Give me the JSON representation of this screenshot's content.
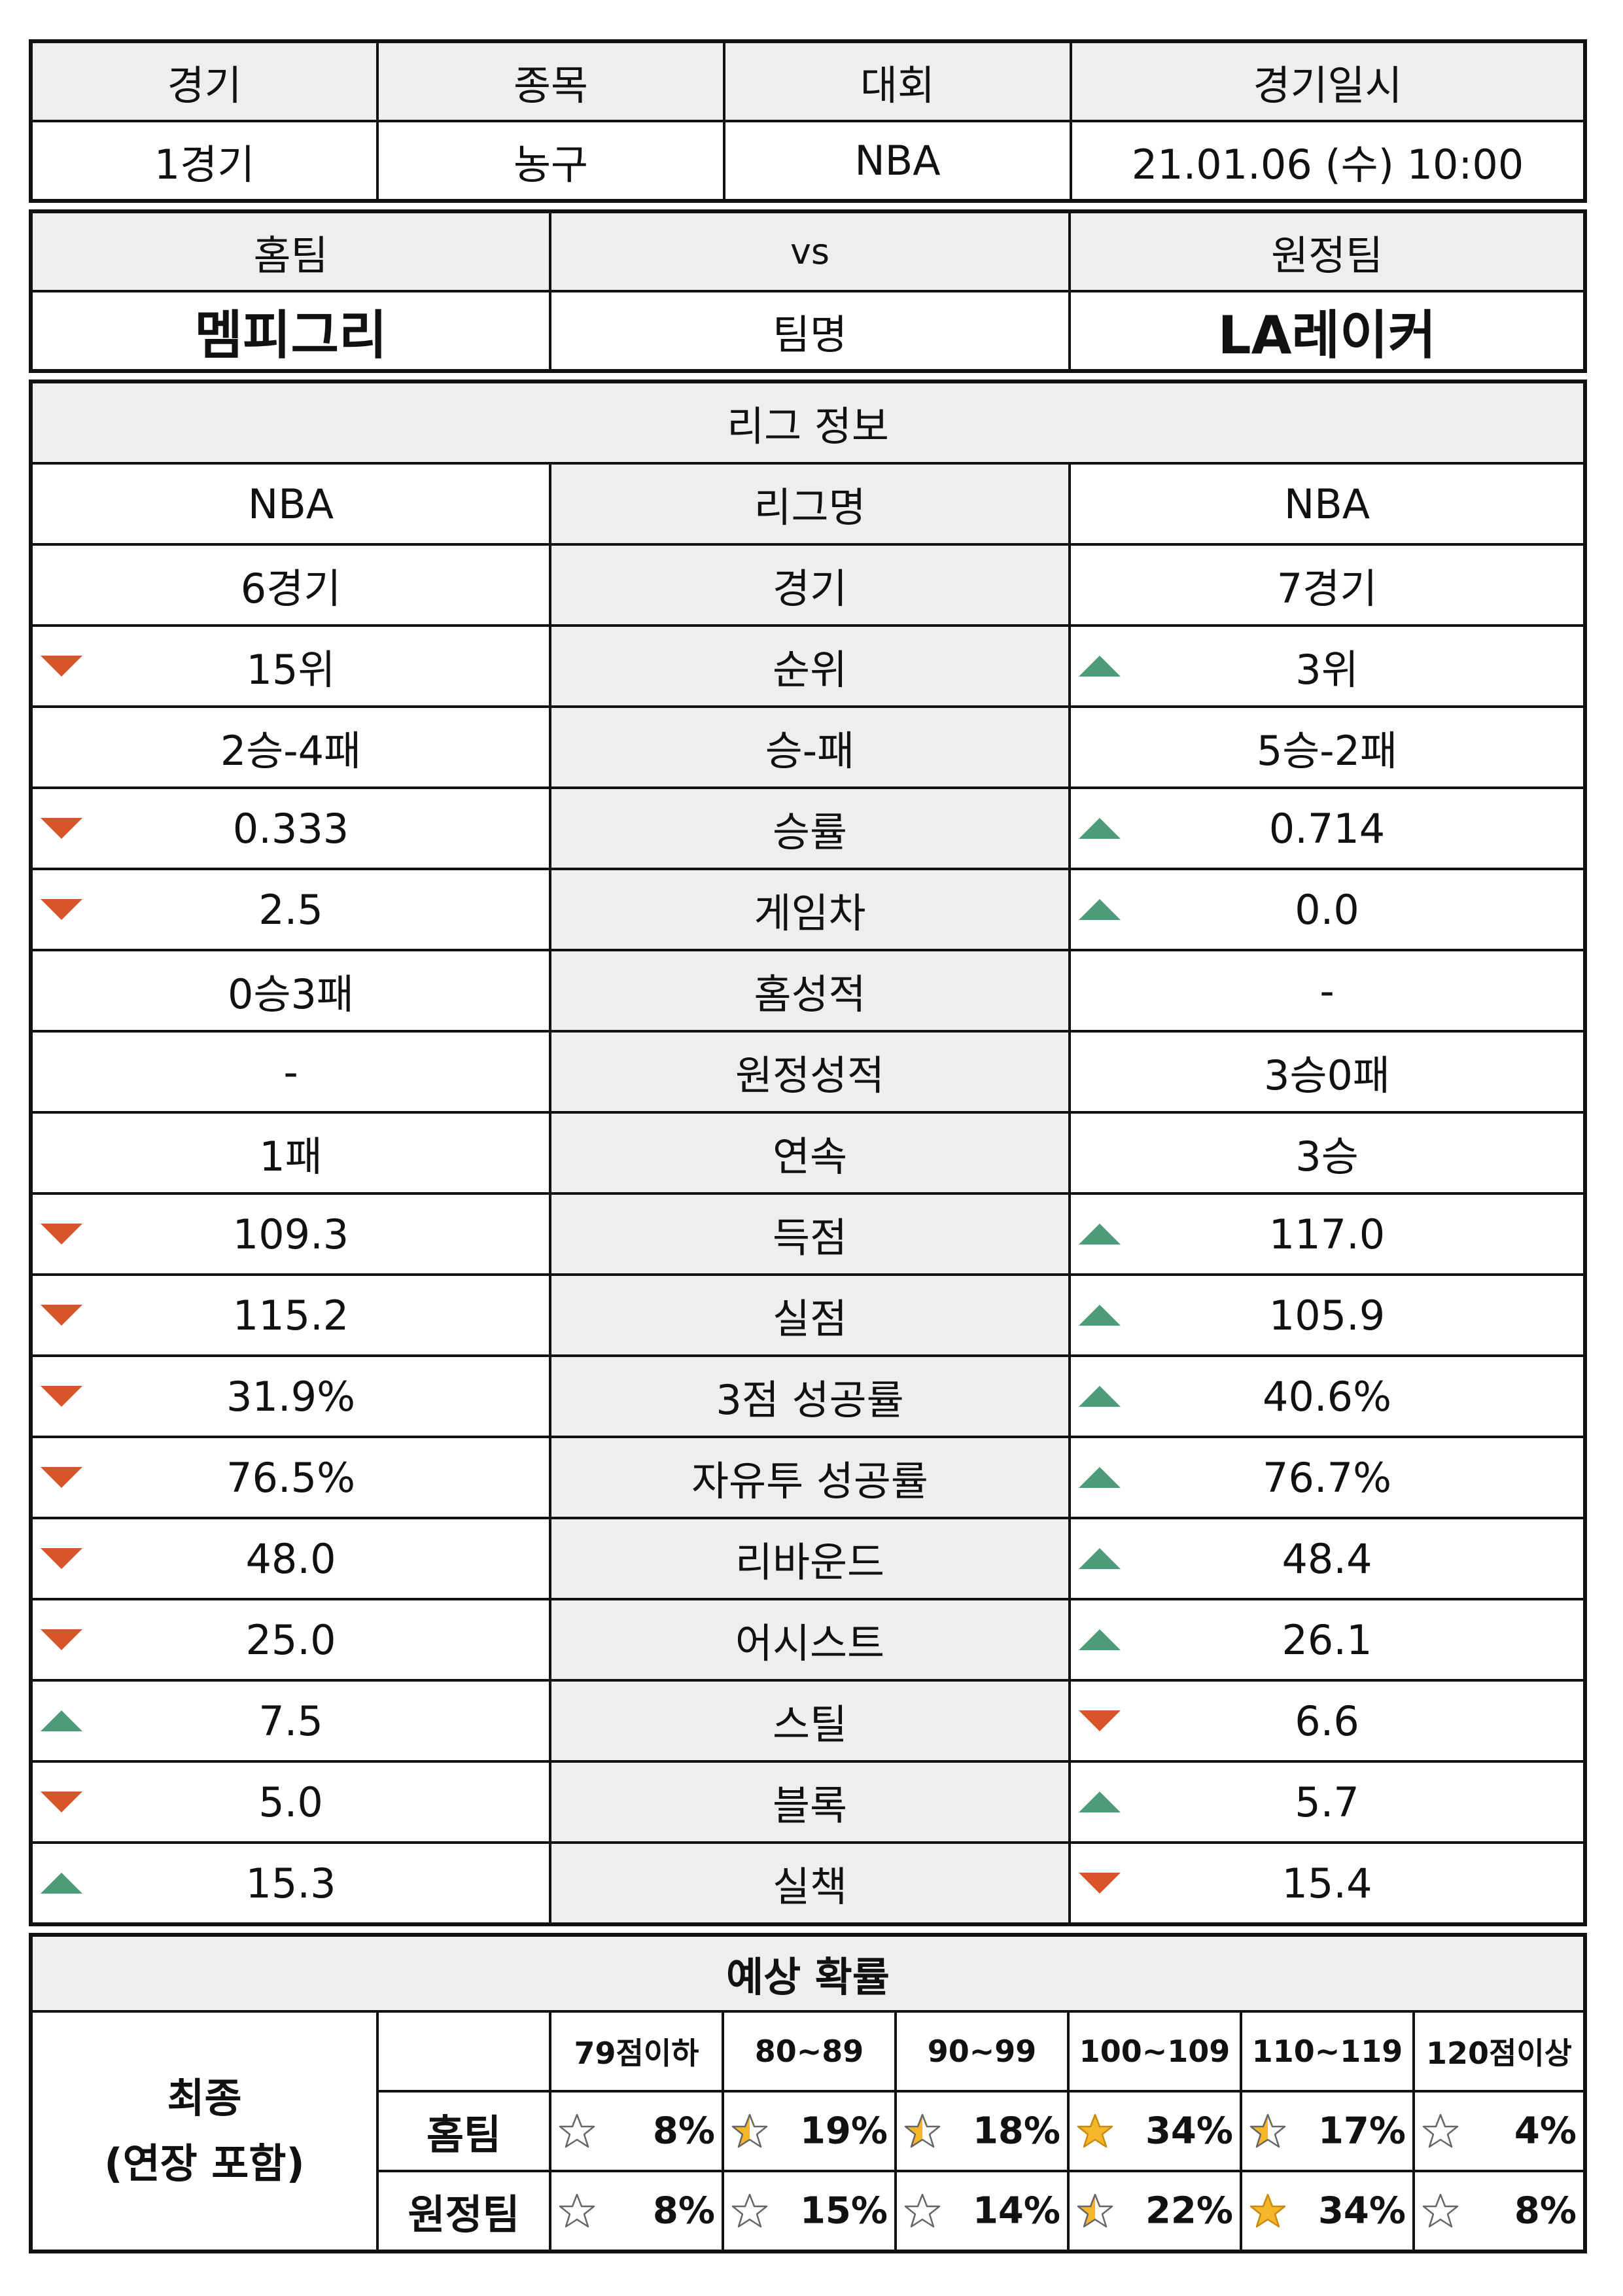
{
  "match": {
    "headers": [
      "경기",
      "종목",
      "대회",
      "경기일시"
    ],
    "values": [
      "1경기",
      "농구",
      "NBA",
      "21.01.06 (수) 10:00"
    ]
  },
  "teams": {
    "home_label": "홈팀",
    "vs_label": "vs",
    "away_label": "원정팀",
    "home_name": "멤피그리",
    "name_label": "팀명",
    "away_name": "LA레이커"
  },
  "league": {
    "title": "리그 정보",
    "rows": [
      {
        "label": "리그명",
        "home": "NBA",
        "away": "NBA",
        "home_trend": "",
        "away_trend": ""
      },
      {
        "label": "경기",
        "home": "6경기",
        "away": "7경기",
        "home_trend": "",
        "away_trend": ""
      },
      {
        "label": "순위",
        "home": "15위",
        "away": "3위",
        "home_trend": "down",
        "away_trend": "up"
      },
      {
        "label": "승-패",
        "home": "2승-4패",
        "away": "5승-2패",
        "home_trend": "",
        "away_trend": ""
      },
      {
        "label": "승률",
        "home": "0.333",
        "away": "0.714",
        "home_trend": "down",
        "away_trend": "up"
      },
      {
        "label": "게임차",
        "home": "2.5",
        "away": "0.0",
        "home_trend": "down",
        "away_trend": "up"
      },
      {
        "label": "홈성적",
        "home": "0승3패",
        "away": "-",
        "home_trend": "",
        "away_trend": ""
      },
      {
        "label": "원정성적",
        "home": "-",
        "away": "3승0패",
        "home_trend": "",
        "away_trend": ""
      },
      {
        "label": "연속",
        "home": "1패",
        "away": "3승",
        "home_trend": "",
        "away_trend": ""
      },
      {
        "label": "득점",
        "home": "109.3",
        "away": "117.0",
        "home_trend": "down",
        "away_trend": "up"
      },
      {
        "label": "실점",
        "home": "115.2",
        "away": "105.9",
        "home_trend": "down",
        "away_trend": "up"
      },
      {
        "label": "3점 성공률",
        "home": "31.9%",
        "away": "40.6%",
        "home_trend": "down",
        "away_trend": "up"
      },
      {
        "label": "자유투 성공률",
        "home": "76.5%",
        "away": "76.7%",
        "home_trend": "down",
        "away_trend": "up"
      },
      {
        "label": "리바운드",
        "home": "48.0",
        "away": "48.4",
        "home_trend": "down",
        "away_trend": "up"
      },
      {
        "label": "어시스트",
        "home": "25.0",
        "away": "26.1",
        "home_trend": "down",
        "away_trend": "up"
      },
      {
        "label": "스틸",
        "home": "7.5",
        "away": "6.6",
        "home_trend": "up",
        "away_trend": "down"
      },
      {
        "label": "블록",
        "home": "5.0",
        "away": "5.7",
        "home_trend": "down",
        "away_trend": "up"
      },
      {
        "label": "실책",
        "home": "15.3",
        "away": "15.4",
        "home_trend": "up",
        "away_trend": "down"
      }
    ]
  },
  "prediction": {
    "title": "예상 확률",
    "final_label": "최종",
    "final_sub": "(연장 포함)",
    "ranges": [
      "79점이하",
      "80~89",
      "90~99",
      "100~109",
      "110~119",
      "120점이상"
    ],
    "home_label": "홈팀",
    "away_label": "원정팀",
    "home": [
      {
        "pct": "8%",
        "star": "empty"
      },
      {
        "pct": "19%",
        "star": "half"
      },
      {
        "pct": "18%",
        "star": "half"
      },
      {
        "pct": "34%",
        "star": "full"
      },
      {
        "pct": "17%",
        "star": "half"
      },
      {
        "pct": "4%",
        "star": "empty"
      }
    ],
    "away": [
      {
        "pct": "8%",
        "star": "empty"
      },
      {
        "pct": "15%",
        "star": "empty"
      },
      {
        "pct": "14%",
        "star": "empty"
      },
      {
        "pct": "22%",
        "star": "half"
      },
      {
        "pct": "34%",
        "star": "full"
      },
      {
        "pct": "8%",
        "star": "empty"
      }
    ]
  },
  "colors": {
    "down": "#d9542b",
    "up": "#4f9a79",
    "star_fill": "#f5b62a",
    "header_bg": "#eeeeee"
  }
}
